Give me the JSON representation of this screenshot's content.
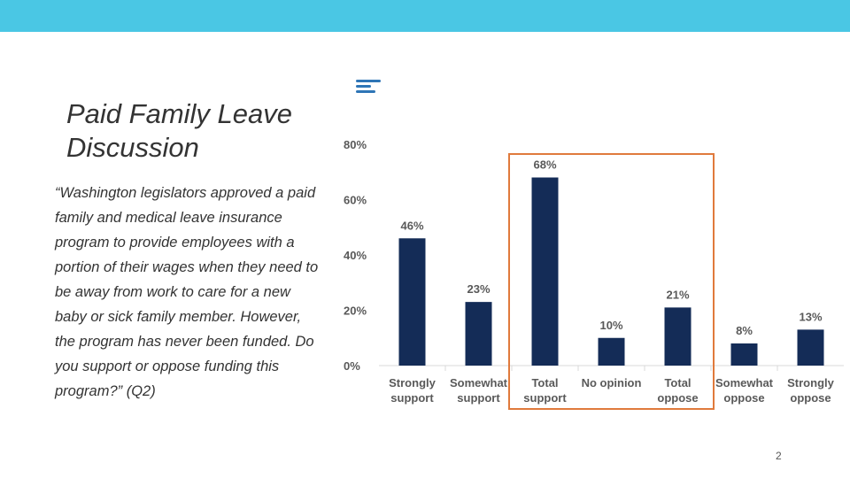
{
  "slide": {
    "title": "Paid Family Leave Discussion",
    "question": "“Washington legislators approved a paid family and medical leave insurance program to provide employees with a portion of their wages when they need to be away from work to care for a new baby or sick family member. However, the program has never been funded. Do you support or oppose funding this program?” (Q2)",
    "page_number": "2"
  },
  "colors": {
    "top_bar": "#4AC7E4",
    "bar": "#142C57",
    "highlight": "#E07A3C",
    "icon": "#2E75B6",
    "axis_text": "#595959",
    "label_text": "#595959"
  },
  "chart_data": {
    "type": "bar",
    "categories": [
      [
        "Strongly",
        "support"
      ],
      [
        "Somewhat",
        "support"
      ],
      [
        "Total",
        "support"
      ],
      [
        "No opinion"
      ],
      [
        "Total",
        "oppose"
      ],
      [
        "Somewhat",
        "oppose"
      ],
      [
        "Strongly",
        "oppose"
      ]
    ],
    "values": [
      46,
      23,
      68,
      10,
      21,
      8,
      13
    ],
    "data_labels": [
      "46%",
      "23%",
      "68%",
      "10%",
      "21%",
      "8%",
      "13%"
    ],
    "y_ticks": [
      0,
      20,
      40,
      60,
      80
    ],
    "y_tick_labels": [
      "0%",
      "20%",
      "40%",
      "60%",
      "80%"
    ],
    "ylim": [
      0,
      80
    ],
    "highlighted_categories": [
      "Total support",
      "No opinion",
      "Total oppose"
    ],
    "title": "",
    "xlabel": "",
    "ylabel": ""
  }
}
